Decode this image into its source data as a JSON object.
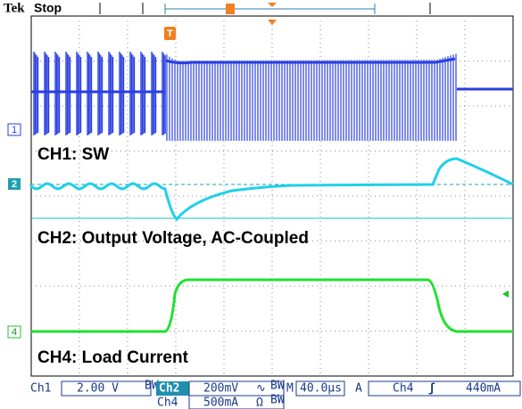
{
  "header": {
    "brand": "Tek",
    "status": "Stop"
  },
  "markers": {
    "trigger": "T",
    "ch1": "1",
    "ch2": "2",
    "ch4": "4"
  },
  "labels": {
    "ch1": "CH1: SW",
    "ch2": "CH2: Output Voltage, AC-Coupled",
    "ch4": "CH4: Load Current"
  },
  "readout": {
    "ch1_name": "Ch1",
    "ch1_scale": "2.00 V",
    "ch1_bw": "BW",
    "ch2_name": "Ch2",
    "ch2_scale": "200mV",
    "ch2_coupling": "∿",
    "ch2_bw": "BW",
    "time_prefix": "M",
    "time_scale": "40.0µs",
    "trigger_mode": "A",
    "trigger_source": "Ch4",
    "trigger_slope": "ʃ",
    "trigger_level": "440mA",
    "ch4_name": "Ch4",
    "ch4_scale": "500mA",
    "ch4_term": "Ω",
    "ch4_bw": "BW"
  }
}
